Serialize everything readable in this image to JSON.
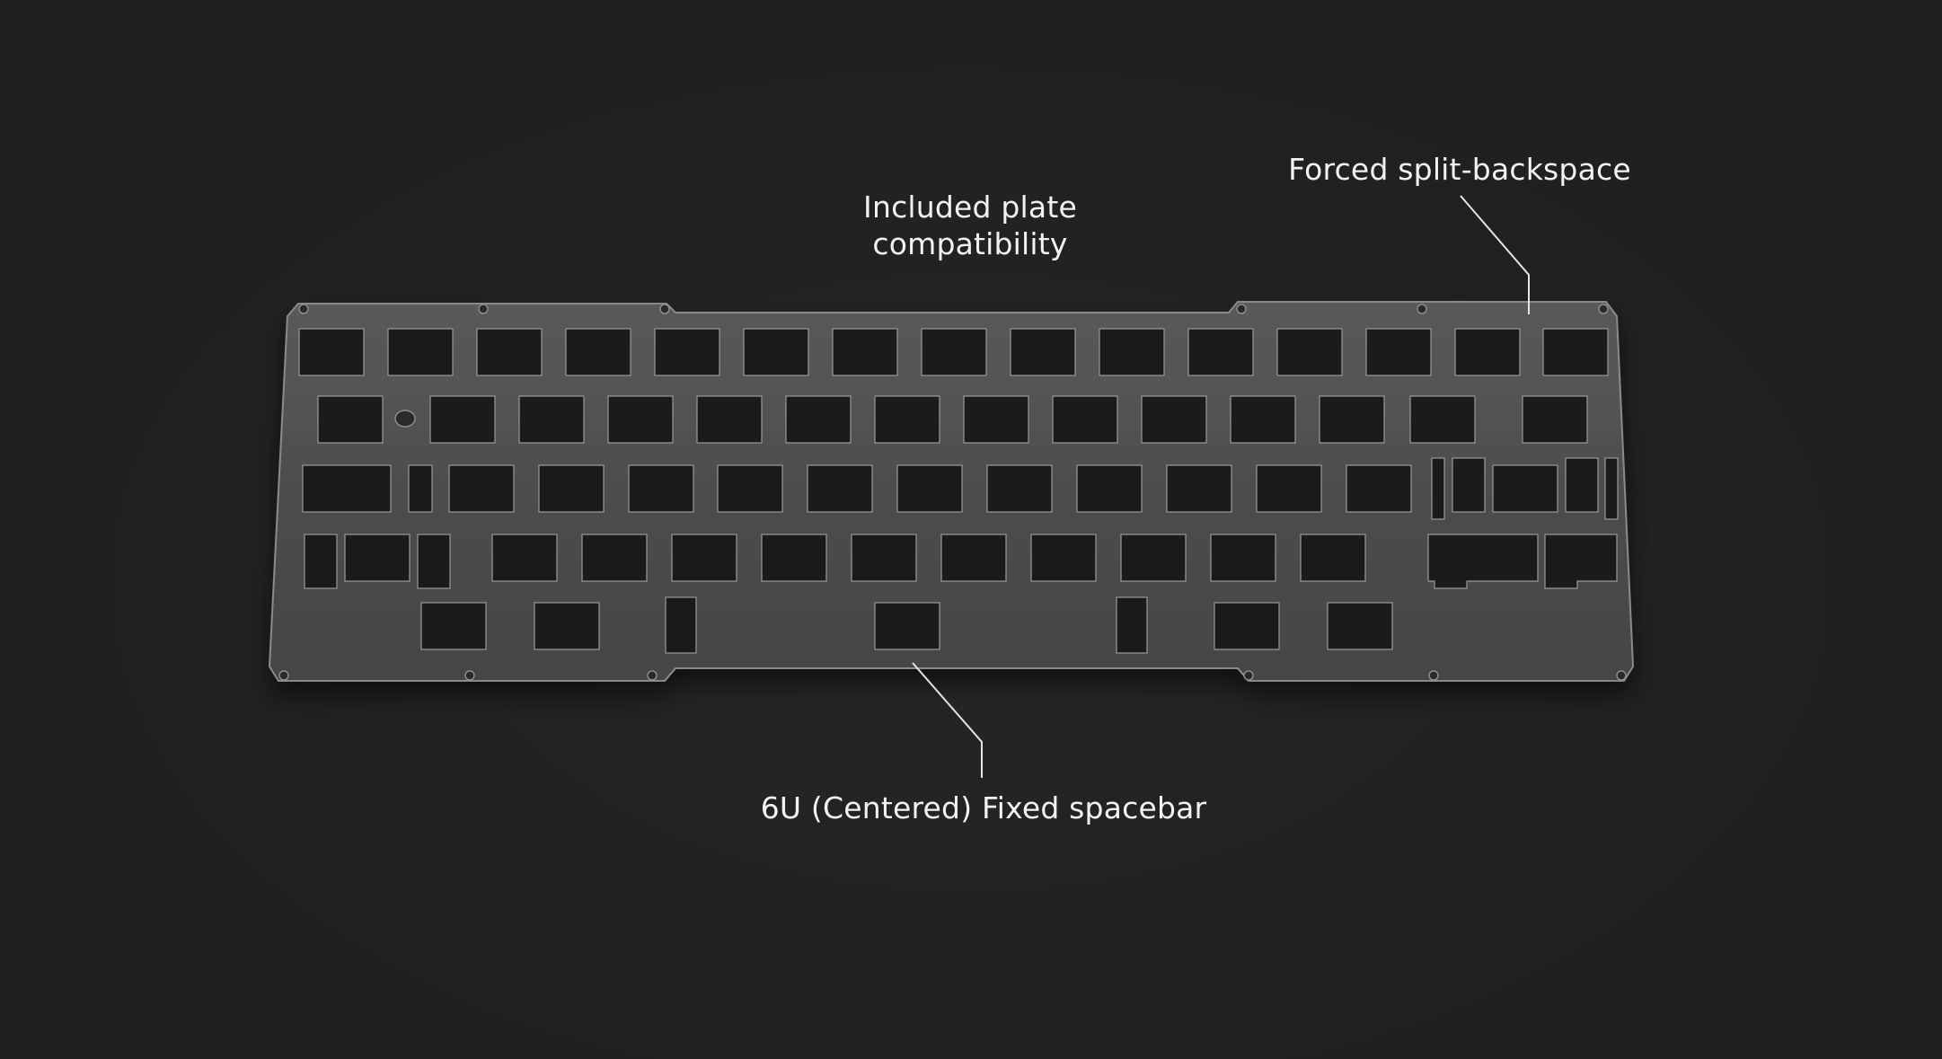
{
  "scene": {
    "background_color": "#202020",
    "plate_color": "#4c4c4c",
    "cutout_color": "#1a1a1a",
    "subject": "keyboard-switch-plate"
  },
  "callouts": {
    "plate_compatibility": {
      "line1": "Included plate",
      "line2": "compatibility"
    },
    "split_backspace": {
      "text": "Forced split-backspace"
    },
    "spacebar": {
      "text": "6U (Centered) Fixed spacebar"
    }
  }
}
